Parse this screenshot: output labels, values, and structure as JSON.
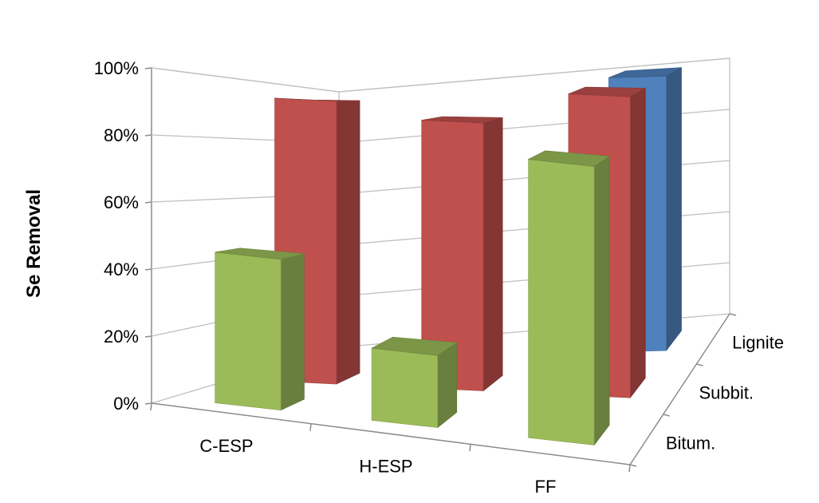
{
  "chart_data": {
    "type": "bar",
    "subtype": "3d-column",
    "title": "",
    "ylabel": "Se Removal",
    "xlabel": "",
    "ylim": [
      0,
      100
    ],
    "y_ticks": [
      "0%",
      "20%",
      "40%",
      "60%",
      "80%",
      "100%"
    ],
    "categories": [
      "C-ESP",
      "H-ESP",
      "FF"
    ],
    "depth_categories": [
      "Bitum.",
      "Subbit.",
      "Lignite"
    ],
    "series": [
      {
        "name": "Bitum.",
        "values": [
          46,
          22,
          85
        ],
        "color": "#9bbb59"
      },
      {
        "name": "Subbit.",
        "values": [
          94,
          89,
          100
        ],
        "color": "#c0504d"
      },
      {
        "name": "Lignite",
        "values": [
          null,
          null,
          100
        ],
        "color": "#4f81bd"
      }
    ],
    "grid": true,
    "legend": "none"
  }
}
